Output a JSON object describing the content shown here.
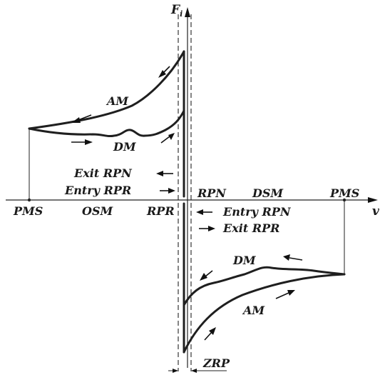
{
  "labels": {
    "y_axis": "F",
    "y_axis_sub": "i",
    "x_axis": "v",
    "pms_left": "PMS",
    "osm": "OSM",
    "rpr": "RPR",
    "rpn": "RPN",
    "dsm": "DSM",
    "pms_right": "PMS",
    "am_top": "AM",
    "dm_top": "DM",
    "dm_bottom": "DM",
    "am_bottom": "AM",
    "exit_rpn": "Exit RPN",
    "entry_rpr": "Entry RPR",
    "entry_rpn": "Entry RPN",
    "exit_rpr": "Exit RPR",
    "zrp": "ZRP"
  }
}
